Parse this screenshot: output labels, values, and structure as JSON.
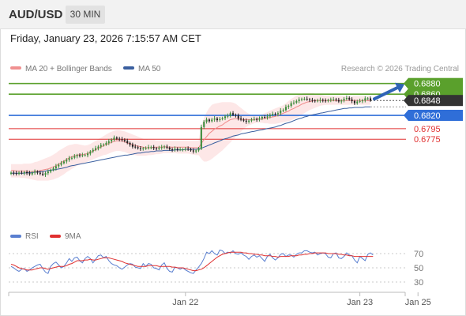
{
  "header": {
    "symbol": "AUD/USD",
    "timeframe": "30 MIN",
    "datetime": "Friday, January 23, 2026 7:15:57 AM CET"
  },
  "legend": {
    "items": [
      {
        "label": "MA 20 + Bollinger Bands",
        "color": "#f09090"
      },
      {
        "label": "MA 50",
        "color": "#3a5f9f"
      }
    ],
    "credit": "Research © 2026 Trading Central"
  },
  "rsi_legend": {
    "items": [
      {
        "label": "RSI",
        "color": "#5a7fd0"
      },
      {
        "label": "9MA",
        "color": "#e03030"
      }
    ]
  },
  "x_axis": [
    "Jan 22",
    "Jan 23",
    "Jan 25"
  ],
  "rsi_axis": [
    "70",
    "50",
    "30"
  ],
  "chart_data": {
    "type": "candlestick",
    "price_range": [
      0.6622,
      0.6893
    ],
    "levels": [
      {
        "value": 0.688,
        "label": "0.6880",
        "kind": "target",
        "color": "#5aa02c"
      },
      {
        "value": 0.686,
        "label": "0.6860",
        "kind": "target",
        "color": "#5aa02c"
      },
      {
        "value": 0.6848,
        "label": "0.6848",
        "kind": "last",
        "color": "#333333"
      },
      {
        "value": 0.682,
        "label": "0.6820",
        "kind": "pivot",
        "color": "#2f6ed8"
      },
      {
        "value": 0.6795,
        "label": "0.6795",
        "kind": "support",
        "color": "#e03030"
      },
      {
        "value": 0.6775,
        "label": "0.6775",
        "kind": "support",
        "color": "#e03030"
      }
    ],
    "close": [
      0.6712,
      0.6711,
      0.671,
      0.6712,
      0.6711,
      0.6713,
      0.6711,
      0.6709,
      0.6712,
      0.6714,
      0.6712,
      0.671,
      0.6708,
      0.6711,
      0.6714,
      0.6717,
      0.672,
      0.6724,
      0.6727,
      0.673,
      0.6733,
      0.6736,
      0.6739,
      0.674,
      0.6743,
      0.6745,
      0.6744,
      0.6745,
      0.6745,
      0.6748,
      0.6752,
      0.6755,
      0.6758,
      0.6761,
      0.6764,
      0.6765,
      0.6768,
      0.6771,
      0.6774,
      0.6778,
      0.6776,
      0.6775,
      0.6774,
      0.6772,
      0.6768,
      0.6765,
      0.6761,
      0.676,
      0.6758,
      0.6757,
      0.6758,
      0.6758,
      0.676,
      0.676,
      0.6758,
      0.6757,
      0.6759,
      0.676,
      0.6761,
      0.6759,
      0.6756,
      0.6755,
      0.6757,
      0.6755,
      0.6756,
      0.6756,
      0.6757,
      0.6756,
      0.6754,
      0.6752,
      0.6754,
      0.6757,
      0.6798,
      0.6808,
      0.6812,
      0.6809,
      0.6812,
      0.6814,
      0.6811,
      0.6813,
      0.6815,
      0.6818,
      0.6819,
      0.6824,
      0.6821,
      0.682,
      0.6814,
      0.6812,
      0.681,
      0.6808,
      0.681,
      0.6812,
      0.6813,
      0.6812,
      0.6814,
      0.6817,
      0.6816,
      0.6818,
      0.6821,
      0.6823,
      0.6822,
      0.6824,
      0.6829,
      0.683,
      0.6836,
      0.6838,
      0.6843,
      0.6844,
      0.6847,
      0.685,
      0.6851,
      0.6851,
      0.685,
      0.6849,
      0.6848,
      0.6847,
      0.6848,
      0.6849,
      0.6848,
      0.6847,
      0.6849,
      0.685,
      0.685,
      0.6849,
      0.6846,
      0.6848,
      0.6851,
      0.6853,
      0.685,
      0.6847,
      0.6843,
      0.6846,
      0.6847,
      0.6848,
      0.6852,
      0.6852,
      0.6848
    ],
    "bb_upper": [
      0.6728,
      0.6728,
      0.6728,
      0.6728,
      0.6728,
      0.6729,
      0.6729,
      0.6729,
      0.673,
      0.6732,
      0.6733,
      0.6735,
      0.6737,
      0.6739,
      0.6741,
      0.6743,
      0.6746,
      0.6749,
      0.6753,
      0.6756,
      0.6759,
      0.6762,
      0.6764,
      0.6765,
      0.6766,
      0.6766,
      0.6765,
      0.6764,
      0.6763,
      0.6764,
      0.6766,
      0.6769,
      0.6772,
      0.6775,
      0.6778,
      0.6781,
      0.6784,
      0.6787,
      0.6789,
      0.6791,
      0.6792,
      0.6792,
      0.6791,
      0.679,
      0.6788,
      0.6786,
      0.6784,
      0.6782,
      0.678,
      0.6778,
      0.6776,
      0.6775,
      0.6774,
      0.6774,
      0.6774,
      0.6773,
      0.6773,
      0.6773,
      0.6773,
      0.6772,
      0.6772,
      0.6772,
      0.6772,
      0.6772,
      0.6772,
      0.6772,
      0.6772,
      0.6772,
      0.6772,
      0.6772,
      0.6772,
      0.6773,
      0.68,
      0.6815,
      0.6826,
      0.6834,
      0.684,
      0.6842,
      0.6843,
      0.6844,
      0.6845,
      0.6845,
      0.6845,
      0.6845,
      0.6844,
      0.6842,
      0.6838,
      0.6834,
      0.683,
      0.6826,
      0.6823,
      0.6821,
      0.682,
      0.682,
      0.682,
      0.6822,
      0.6824,
      0.6826,
      0.6829,
      0.6831,
      0.6833,
      0.6835,
      0.6837,
      0.6839,
      0.6843,
      0.6847,
      0.6851,
      0.6854,
      0.6857,
      0.6859,
      0.6861,
      0.6862,
      0.6862,
      0.6862,
      0.6862,
      0.6861,
      0.686,
      0.6859,
      0.6858,
      0.6857,
      0.6857,
      0.6856,
      0.6856,
      0.6856,
      0.6856,
      0.6856,
      0.6856,
      0.6856,
      0.6856,
      0.6856,
      0.6856,
      0.6856,
      0.6856,
      0.6856,
      0.6856,
      0.6856,
      0.6856
    ],
    "bb_lower": [
      0.6703,
      0.6703,
      0.6703,
      0.6703,
      0.6702,
      0.6702,
      0.6701,
      0.67,
      0.6699,
      0.6698,
      0.6697,
      0.6697,
      0.6697,
      0.6697,
      0.6697,
      0.6698,
      0.6699,
      0.6701,
      0.6703,
      0.6706,
      0.6709,
      0.6713,
      0.6716,
      0.6719,
      0.6722,
      0.6725,
      0.6727,
      0.6729,
      0.6731,
      0.6733,
      0.6735,
      0.6737,
      0.6739,
      0.6741,
      0.6743,
      0.6745,
      0.6746,
      0.6748,
      0.675,
      0.6752,
      0.6753,
      0.6753,
      0.6752,
      0.6751,
      0.6749,
      0.6747,
      0.6746,
      0.6745,
      0.6744,
      0.6744,
      0.6744,
      0.6744,
      0.6745,
      0.6745,
      0.6746,
      0.6747,
      0.6747,
      0.6748,
      0.6749,
      0.6749,
      0.6749,
      0.6749,
      0.6749,
      0.6748,
      0.6748,
      0.6748,
      0.6748,
      0.6748,
      0.6747,
      0.6746,
      0.6745,
      0.6745,
      0.6738,
      0.6733,
      0.6733,
      0.6735,
      0.6738,
      0.6742,
      0.6746,
      0.675,
      0.6754,
      0.6759,
      0.6764,
      0.6769,
      0.6774,
      0.6779,
      0.6784,
      0.6789,
      0.6794,
      0.6798,
      0.6801,
      0.6803,
      0.6805,
      0.6806,
      0.6806,
      0.6806,
      0.6805,
      0.6805,
      0.6804,
      0.6804,
      0.6804,
      0.6805,
      0.6806,
      0.6807,
      0.6808,
      0.6809,
      0.6811,
      0.6813,
      0.6815,
      0.6818,
      0.6821,
      0.6824,
      0.6827,
      0.683,
      0.6832,
      0.6834,
      0.6836,
      0.6838,
      0.6839,
      0.684,
      0.684,
      0.684,
      0.684,
      0.684,
      0.684,
      0.684,
      0.684,
      0.684,
      0.684,
      0.684,
      0.684,
      0.684,
      0.684,
      0.684,
      0.684,
      0.684,
      0.684
    ],
    "ma20": [
      0.6716,
      0.6716,
      0.6715,
      0.6715,
      0.6715,
      0.6715,
      0.6715,
      0.6714,
      0.6714,
      0.6715,
      0.6715,
      0.6716,
      0.6717,
      0.6718,
      0.6719,
      0.6721,
      0.6723,
      0.6725,
      0.6728,
      0.6731,
      0.6734,
      0.6737,
      0.674,
      0.6742,
      0.6744,
      0.6745,
      0.6746,
      0.6746,
      0.6747,
      0.6748,
      0.675,
      0.6753,
      0.6755,
      0.6758,
      0.676,
      0.6763,
      0.6765,
      0.6767,
      0.6769,
      0.6771,
      0.6772,
      0.6772,
      0.6772,
      0.677,
      0.6768,
      0.6766,
      0.6765,
      0.6763,
      0.6762,
      0.6761,
      0.676,
      0.6759,
      0.6759,
      0.6759,
      0.676,
      0.676,
      0.676,
      0.676,
      0.6761,
      0.676,
      0.676,
      0.676,
      0.676,
      0.676,
      0.676,
      0.676,
      0.676,
      0.676,
      0.6759,
      0.6759,
      0.6759,
      0.6759,
      0.6767,
      0.6774,
      0.678,
      0.6786,
      0.679,
      0.6794,
      0.6797,
      0.68,
      0.6802,
      0.6806,
      0.6809,
      0.6812,
      0.6813,
      0.6814,
      0.6813,
      0.6813,
      0.6812,
      0.6812,
      0.6812,
      0.6812,
      0.6812,
      0.6813,
      0.6813,
      0.6813,
      0.6814,
      0.6815,
      0.6816,
      0.6817,
      0.6818,
      0.682,
      0.6822,
      0.6824,
      0.6826,
      0.6828,
      0.6831,
      0.6833,
      0.6836,
      0.6838,
      0.6841,
      0.6843,
      0.6845,
      0.6846,
      0.6847,
      0.6848,
      0.6848,
      0.6848,
      0.6848,
      0.6848,
      0.6848,
      0.6848,
      0.6848,
      0.6848,
      0.6848,
      0.6848,
      0.6848,
      0.6848,
      0.6848,
      0.6848,
      0.6848,
      0.6848,
      0.6848,
      0.6848,
      0.6848,
      0.6848,
      0.6848
    ],
    "ma50": [
      0.6711,
      0.6711,
      0.6711,
      0.6711,
      0.6711,
      0.6711,
      0.6712,
      0.6712,
      0.6712,
      0.6713,
      0.6713,
      0.6714,
      0.6714,
      0.6715,
      0.6716,
      0.6717,
      0.6717,
      0.6718,
      0.6719,
      0.672,
      0.6721,
      0.6722,
      0.6724,
      0.6725,
      0.6726,
      0.6727,
      0.6728,
      0.6729,
      0.673,
      0.6731,
      0.6732,
      0.6733,
      0.6734,
      0.6735,
      0.6736,
      0.6737,
      0.6738,
      0.6739,
      0.674,
      0.6741,
      0.6742,
      0.6743,
      0.6744,
      0.6745,
      0.6745,
      0.6746,
      0.6747,
      0.6748,
      0.6749,
      0.6749,
      0.675,
      0.6751,
      0.6751,
      0.6752,
      0.6752,
      0.6753,
      0.6753,
      0.6753,
      0.6754,
      0.6754,
      0.6754,
      0.6754,
      0.6755,
      0.6755,
      0.6755,
      0.6755,
      0.6756,
      0.6756,
      0.6756,
      0.6756,
      0.6756,
      0.6757,
      0.6758,
      0.676,
      0.6762,
      0.6764,
      0.6766,
      0.6768,
      0.677,
      0.6772,
      0.6774,
      0.6776,
      0.6777,
      0.6779,
      0.6781,
      0.6782,
      0.6783,
      0.6785,
      0.6786,
      0.6787,
      0.6788,
      0.6789,
      0.679,
      0.6791,
      0.6792,
      0.6793,
      0.6794,
      0.6795,
      0.6796,
      0.6797,
      0.6798,
      0.68,
      0.6801,
      0.6803,
      0.6805,
      0.6806,
      0.6808,
      0.681,
      0.6812,
      0.6814,
      0.6815,
      0.6817,
      0.6818,
      0.682,
      0.6821,
      0.6822,
      0.6823,
      0.6824,
      0.6825,
      0.6826,
      0.6827,
      0.6828,
      0.6829,
      0.683,
      0.6831,
      0.6832,
      0.6833,
      0.6833,
      0.6834,
      0.6834,
      0.6835,
      0.6835,
      0.6835,
      0.6835,
      0.6836,
      0.6836,
      0.6836
    ],
    "rsi": [
      52,
      50,
      47,
      45,
      48,
      49,
      45,
      47,
      50,
      52,
      54,
      55,
      49,
      44,
      42,
      52,
      56,
      58,
      54,
      50,
      52,
      57,
      63,
      59,
      64,
      65,
      60,
      57,
      63,
      66,
      63,
      57,
      62,
      67,
      68,
      64,
      66,
      60,
      56,
      54,
      53,
      50,
      48,
      51,
      54,
      56,
      55,
      51,
      50,
      49,
      56,
      52,
      56,
      55,
      50,
      49,
      47,
      54,
      57,
      49,
      45,
      44,
      51,
      50,
      48,
      50,
      47,
      45,
      43,
      42,
      47,
      51,
      56,
      63,
      72,
      70,
      74,
      70,
      68,
      75,
      74,
      70,
      72,
      71,
      74,
      70,
      69,
      71,
      68,
      66,
      62,
      66,
      68,
      65,
      67,
      63,
      59,
      66,
      69,
      64,
      61,
      64,
      69,
      70,
      66,
      68,
      68,
      65,
      69,
      71,
      71,
      74,
      74,
      72,
      71,
      72,
      68,
      70,
      71,
      70,
      65,
      64,
      70,
      71,
      64,
      63,
      66,
      71,
      68,
      67,
      61,
      57,
      66,
      63,
      60,
      69,
      71,
      68
    ],
    "rsi_ma": [
      55,
      54,
      52,
      50,
      49,
      48,
      47,
      47,
      47,
      48,
      49,
      50,
      50,
      49,
      48,
      49,
      50,
      51,
      52,
      52,
      52,
      53,
      55,
      56,
      58,
      60,
      60,
      60,
      61,
      61,
      62,
      61,
      61,
      62,
      63,
      64,
      64,
      64,
      63,
      62,
      61,
      60,
      59,
      57,
      56,
      55,
      54,
      53,
      52,
      52,
      52,
      52,
      53,
      53,
      53,
      53,
      52,
      52,
      52,
      52,
      52,
      51,
      51,
      50,
      50,
      50,
      49,
      48,
      47,
      46,
      46,
      47,
      48,
      50,
      53,
      56,
      59,
      62,
      65,
      67,
      69,
      70,
      71,
      72,
      72,
      72,
      72,
      72,
      71,
      71,
      70,
      70,
      69,
      69,
      68,
      68,
      67,
      67,
      67,
      66,
      66,
      65,
      66,
      66,
      66,
      66,
      67,
      67,
      67,
      68,
      68,
      69,
      69,
      70,
      70,
      71,
      71,
      71,
      71,
      71,
      70,
      70,
      70,
      70,
      69,
      69,
      68,
      68,
      67,
      67,
      66,
      66,
      66,
      66,
      66,
      66,
      66,
      66
    ],
    "x_labels": [
      {
        "label": "Jan 22",
        "index": 66
      },
      {
        "label": "Jan 23",
        "index": 132
      },
      {
        "label": "Jan 25",
        "index": 154
      }
    ],
    "rsi_levels": [
      70,
      50,
      30
    ],
    "projection": {
      "from": 0.6848,
      "to": 0.688,
      "direction": "up"
    }
  }
}
